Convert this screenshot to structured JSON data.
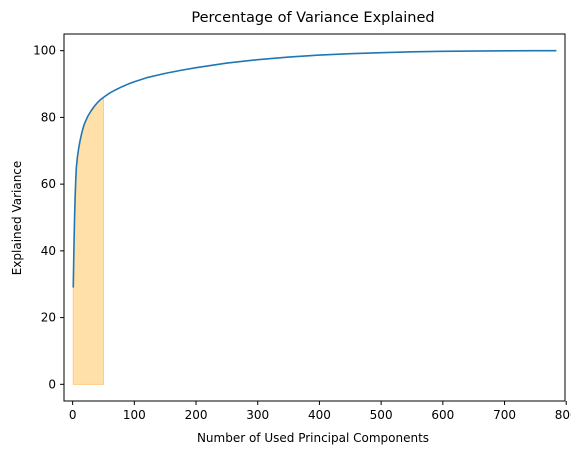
{
  "chart_data": {
    "type": "line",
    "title": "Percentage of Variance Explained",
    "xlabel": "Number of Used Principal Components",
    "ylabel": "Explained Variance",
    "xlim": [
      -14,
      798
    ],
    "ylim": [
      -5,
      105
    ],
    "x_ticks": [
      0,
      100,
      200,
      300,
      400,
      500,
      600,
      700,
      800
    ],
    "y_ticks": [
      0,
      20,
      40,
      60,
      80,
      100
    ],
    "grid": false,
    "line_color": "#1f77b4",
    "fill_color": "#ffe0a8",
    "fill_edge_color": "#ffcc80",
    "series": [
      {
        "x": [
          1,
          2,
          3,
          4,
          5,
          6,
          8,
          10,
          12,
          15,
          18,
          20,
          25,
          30,
          35,
          40,
          45,
          50,
          60,
          70,
          80,
          90,
          100,
          120,
          150,
          175,
          200,
          250,
          300,
          350,
          400,
          450,
          500,
          550,
          600,
          650,
          700,
          750,
          784
        ],
        "values": [
          29,
          40,
          49,
          56,
          61,
          65,
          68.5,
          71,
          73,
          75.5,
          77.5,
          78.5,
          80.5,
          82,
          83.3,
          84.4,
          85.3,
          86,
          87.3,
          88.3,
          89.2,
          90,
          90.7,
          91.9,
          93.2,
          94.1,
          94.9,
          96.3,
          97.3,
          98.1,
          98.7,
          99.1,
          99.4,
          99.65,
          99.8,
          99.9,
          99.96,
          99.99,
          100
        ]
      }
    ],
    "highlight": {
      "x_start": 1,
      "x_end": 50
    }
  }
}
